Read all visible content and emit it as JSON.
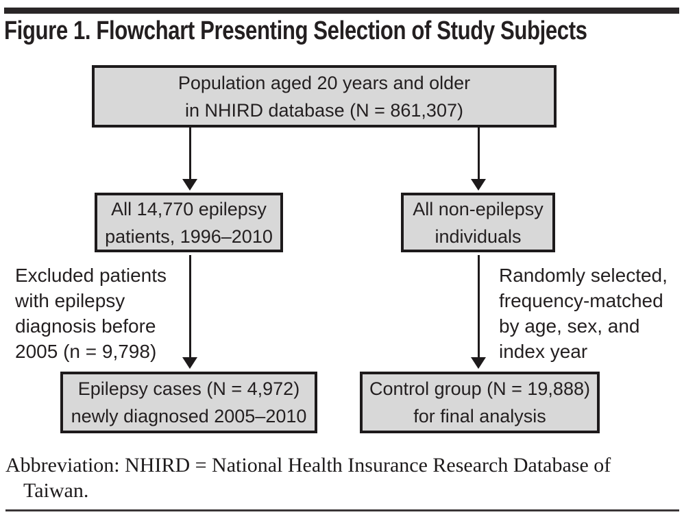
{
  "figure": {
    "title": "Figure 1. Flowchart Presenting Selection of Study Subjects",
    "footnote": "Abbreviation: NHIRD = National Health Insurance Research Database of\nTaiwan."
  },
  "flowchart": {
    "top_box": "Population aged 20 years and older\nin NHIRD database (N = 861,307)",
    "mid_left_box": "All 14,770 epilepsy\npatients, 1996–2010",
    "mid_right_box": "All non-epilepsy\nindividuals",
    "left_note": "Excluded patients\nwith epilepsy\ndiagnosis before\n2005 (n = 9,798)",
    "right_note": "Randomly selected,\nfrequency-matched\nby age, sex, and\nindex year",
    "bottom_left_box": "Epilepsy cases (N = 4,972)\nnewly diagnosed 2005–2010",
    "bottom_right_box": "Control group (N = 19,888)\nfor final analysis"
  },
  "colors": {
    "box_fill": "#d8d8d8",
    "line": "#1d1a1b",
    "text": "#231f20"
  }
}
